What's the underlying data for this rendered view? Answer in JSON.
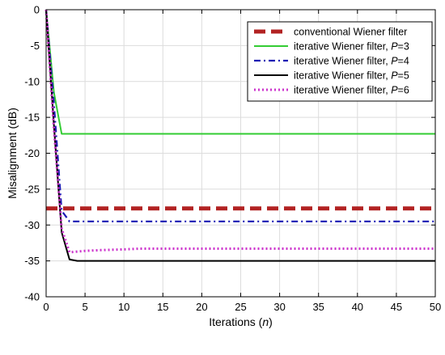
{
  "chart_data": {
    "type": "line",
    "xlabel": "Iterations (n)",
    "ylabel": "Misalignment (dB)",
    "xlim": [
      0,
      50
    ],
    "ylim": [
      -40,
      0
    ],
    "xticks": [
      0,
      5,
      10,
      15,
      20,
      25,
      30,
      35,
      40,
      45,
      50
    ],
    "yticks": [
      0,
      -5,
      -10,
      -15,
      -20,
      -25,
      -30,
      -35,
      -40
    ],
    "grid": true,
    "legend_position": "top-right",
    "series": [
      {
        "name": "conventional Wiener filter",
        "name_prefix": "conventional Wiener filter",
        "name_param": "",
        "color": "#b22222",
        "style": "dashed",
        "width": 5,
        "x": [
          0,
          50
        ],
        "y": [
          -27.7,
          -27.7
        ]
      },
      {
        "name": "iterative Wiener filter, P=3",
        "name_prefix": "iterative Wiener filter,",
        "name_param": "P=3",
        "color": "#33cc33",
        "style": "solid",
        "width": 2,
        "x": [
          0,
          1,
          2,
          3,
          4,
          5,
          10,
          20,
          30,
          40,
          50
        ],
        "y": [
          0,
          -11.5,
          -17.3,
          -17.3,
          -17.3,
          -17.3,
          -17.3,
          -17.3,
          -17.3,
          -17.3,
          -17.3
        ]
      },
      {
        "name": "iterative Wiener filter, P=4",
        "name_prefix": "iterative Wiener filter,",
        "name_param": "P=4",
        "color": "#1a1ab3",
        "style": "dashdot",
        "width": 2.2,
        "x": [
          0,
          1,
          2,
          3,
          4,
          5,
          10,
          20,
          30,
          40,
          50
        ],
        "y": [
          0,
          -13.0,
          -28.0,
          -29.5,
          -29.5,
          -29.5,
          -29.5,
          -29.5,
          -29.5,
          -29.5,
          -29.5
        ]
      },
      {
        "name": "iterative Wiener filter, P=5",
        "name_prefix": "iterative Wiener filter,",
        "name_param": "P=5",
        "color": "#000000",
        "style": "solid",
        "width": 2,
        "x": [
          0,
          1,
          2,
          3,
          4,
          5,
          7,
          10,
          20,
          30,
          40,
          50
        ],
        "y": [
          0,
          -16.0,
          -31.0,
          -34.8,
          -35.0,
          -35.0,
          -35.0,
          -35.0,
          -35.0,
          -35.0,
          -35.0,
          -35.0
        ]
      },
      {
        "name": "iterative Wiener filter, P=6",
        "name_prefix": "iterative Wiener filter,",
        "name_param": "P=6",
        "color": "#cc33cc",
        "style": "dotted",
        "width": 3,
        "x": [
          0,
          1,
          2,
          3,
          4,
          5,
          7,
          10,
          12,
          15,
          20,
          30,
          40,
          50
        ],
        "y": [
          0,
          -16.5,
          -30.5,
          -33.8,
          -33.7,
          -33.6,
          -33.5,
          -33.4,
          -33.3,
          -33.3,
          -33.3,
          -33.3,
          -33.3,
          -33.3
        ]
      }
    ]
  }
}
